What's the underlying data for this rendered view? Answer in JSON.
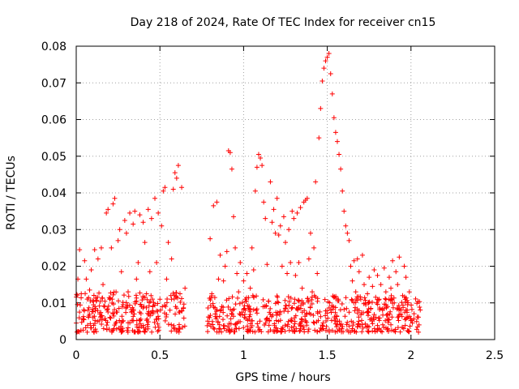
{
  "chart_data": {
    "type": "scatter",
    "title": "Day 218 of 2024, Rate Of TEC Index for receiver cn15",
    "xlabel": "GPS time / hours",
    "ylabel": "ROTI / TECUs",
    "xlim": [
      0,
      2.5
    ],
    "ylim": [
      0,
      0.08
    ],
    "xticks": [
      0,
      0.5,
      1,
      1.5,
      2,
      2.5
    ],
    "xtick_labels": [
      "0",
      "0.5",
      "1",
      "1.5",
      "2",
      "2.5"
    ],
    "yticks": [
      0,
      0.01,
      0.02,
      0.03,
      0.04,
      0.05,
      0.06,
      0.07,
      0.08
    ],
    "ytick_labels": [
      "0",
      "0.01",
      "0.02",
      "0.03",
      "0.04",
      "0.05",
      "0.06",
      "0.07",
      "0.08"
    ],
    "grid": true,
    "marker": "+",
    "color": "#ff0000",
    "series": [
      {
        "name": "ROTI",
        "points": [
          [
            0.0,
            0.0045
          ],
          [
            0.01,
            0.0165
          ],
          [
            0.02,
            0.0245
          ],
          [
            0.02,
            0.0075
          ],
          [
            0.03,
            0.0125
          ],
          [
            0.04,
            0.0055
          ],
          [
            0.05,
            0.0215
          ],
          [
            0.06,
            0.0165
          ],
          [
            0.07,
            0.008
          ],
          [
            0.08,
            0.0135
          ],
          [
            0.09,
            0.019
          ],
          [
            0.1,
            0.006
          ],
          [
            0.11,
            0.0245
          ],
          [
            0.12,
            0.0105
          ],
          [
            0.13,
            0.022
          ],
          [
            0.14,
            0.007
          ],
          [
            0.15,
            0.025
          ],
          [
            0.16,
            0.015
          ],
          [
            0.17,
            0.009
          ],
          [
            0.18,
            0.0345
          ],
          [
            0.19,
            0.0355
          ],
          [
            0.2,
            0.011
          ],
          [
            0.21,
            0.025
          ],
          [
            0.22,
            0.037
          ],
          [
            0.23,
            0.0385
          ],
          [
            0.24,
            0.0075
          ],
          [
            0.25,
            0.027
          ],
          [
            0.26,
            0.03
          ],
          [
            0.27,
            0.0185
          ],
          [
            0.28,
            0.0095
          ],
          [
            0.29,
            0.0325
          ],
          [
            0.3,
            0.029
          ],
          [
            0.31,
            0.013
          ],
          [
            0.32,
            0.0345
          ],
          [
            0.33,
            0.0075
          ],
          [
            0.34,
            0.0315
          ],
          [
            0.35,
            0.035
          ],
          [
            0.36,
            0.0165
          ],
          [
            0.37,
            0.021
          ],
          [
            0.38,
            0.034
          ],
          [
            0.39,
            0.009
          ],
          [
            0.4,
            0.032
          ],
          [
            0.41,
            0.0265
          ],
          [
            0.42,
            0.0125
          ],
          [
            0.43,
            0.0355
          ],
          [
            0.44,
            0.0185
          ],
          [
            0.45,
            0.033
          ],
          [
            0.46,
            0.0075
          ],
          [
            0.47,
            0.0385
          ],
          [
            0.48,
            0.021
          ],
          [
            0.49,
            0.0345
          ],
          [
            0.5,
            0.011
          ],
          [
            0.51,
            0.031
          ],
          [
            0.52,
            0.0405
          ],
          [
            0.53,
            0.0415
          ],
          [
            0.54,
            0.0165
          ],
          [
            0.55,
            0.0265
          ],
          [
            0.56,
            0.008
          ],
          [
            0.57,
            0.022
          ],
          [
            0.58,
            0.041
          ],
          [
            0.59,
            0.0455
          ],
          [
            0.6,
            0.044
          ],
          [
            0.61,
            0.0475
          ],
          [
            0.62,
            0.0125
          ],
          [
            0.63,
            0.0415
          ],
          [
            0.64,
            0.0085
          ],
          [
            0.65,
            0.014
          ],
          [
            0.8,
            0.0275
          ],
          [
            0.81,
            0.0125
          ],
          [
            0.82,
            0.0365
          ],
          [
            0.83,
            0.007
          ],
          [
            0.84,
            0.0375
          ],
          [
            0.85,
            0.0165
          ],
          [
            0.86,
            0.023
          ],
          [
            0.87,
            0.009
          ],
          [
            0.88,
            0.016
          ],
          [
            0.89,
            0.02
          ],
          [
            0.9,
            0.024
          ],
          [
            0.91,
            0.0515
          ],
          [
            0.92,
            0.051
          ],
          [
            0.93,
            0.0465
          ],
          [
            0.94,
            0.0335
          ],
          [
            0.95,
            0.025
          ],
          [
            0.96,
            0.018
          ],
          [
            0.97,
            0.013
          ],
          [
            0.98,
            0.021
          ],
          [
            0.99,
            0.0075
          ],
          [
            1.0,
            0.016
          ],
          [
            1.01,
            0.011
          ],
          [
            1.02,
            0.018
          ],
          [
            1.03,
            0.0085
          ],
          [
            1.04,
            0.014
          ],
          [
            1.05,
            0.025
          ],
          [
            1.06,
            0.019
          ],
          [
            1.07,
            0.0405
          ],
          [
            1.08,
            0.047
          ],
          [
            1.09,
            0.0505
          ],
          [
            1.1,
            0.0495
          ],
          [
            1.11,
            0.0475
          ],
          [
            1.12,
            0.0375
          ],
          [
            1.13,
            0.033
          ],
          [
            1.14,
            0.0205
          ],
          [
            1.15,
            0.0105
          ],
          [
            1.16,
            0.043
          ],
          [
            1.17,
            0.032
          ],
          [
            1.18,
            0.0355
          ],
          [
            1.19,
            0.029
          ],
          [
            1.2,
            0.0385
          ],
          [
            1.21,
            0.0285
          ],
          [
            1.22,
            0.031
          ],
          [
            1.23,
            0.02
          ],
          [
            1.24,
            0.0335
          ],
          [
            1.25,
            0.0265
          ],
          [
            1.26,
            0.018
          ],
          [
            1.27,
            0.03
          ],
          [
            1.28,
            0.021
          ],
          [
            1.29,
            0.035
          ],
          [
            1.3,
            0.033
          ],
          [
            1.31,
            0.0175
          ],
          [
            1.32,
            0.0345
          ],
          [
            1.33,
            0.021
          ],
          [
            1.34,
            0.036
          ],
          [
            1.35,
            0.014
          ],
          [
            1.36,
            0.0375
          ],
          [
            1.37,
            0.038
          ],
          [
            1.38,
            0.0385
          ],
          [
            1.39,
            0.022
          ],
          [
            1.4,
            0.029
          ],
          [
            1.41,
            0.013
          ],
          [
            1.42,
            0.025
          ],
          [
            1.43,
            0.043
          ],
          [
            1.44,
            0.018
          ],
          [
            1.45,
            0.055
          ],
          [
            1.46,
            0.063
          ],
          [
            1.47,
            0.0705
          ],
          [
            1.48,
            0.074
          ],
          [
            1.49,
            0.076
          ],
          [
            1.5,
            0.077
          ],
          [
            1.51,
            0.078
          ],
          [
            1.52,
            0.0725
          ],
          [
            1.53,
            0.067
          ],
          [
            1.54,
            0.0605
          ],
          [
            1.55,
            0.0565
          ],
          [
            1.56,
            0.054
          ],
          [
            1.57,
            0.0505
          ],
          [
            1.58,
            0.0465
          ],
          [
            1.59,
            0.0405
          ],
          [
            1.6,
            0.035
          ],
          [
            1.61,
            0.031
          ],
          [
            1.62,
            0.029
          ],
          [
            1.63,
            0.027
          ],
          [
            1.64,
            0.02
          ],
          [
            1.65,
            0.016
          ],
          [
            1.66,
            0.0215
          ],
          [
            1.67,
            0.013
          ],
          [
            1.68,
            0.022
          ],
          [
            1.69,
            0.0185
          ],
          [
            1.7,
            0.011
          ],
          [
            1.71,
            0.023
          ],
          [
            1.72,
            0.015
          ],
          [
            1.73,
            0.0095
          ],
          [
            1.74,
            0.0125
          ],
          [
            1.75,
            0.017
          ],
          [
            1.76,
            0.0085
          ],
          [
            1.77,
            0.0145
          ],
          [
            1.78,
            0.019
          ],
          [
            1.79,
            0.006
          ],
          [
            1.8,
            0.0175
          ],
          [
            1.81,
            0.011
          ],
          [
            1.82,
            0.015
          ],
          [
            1.83,
            0.008
          ],
          [
            1.84,
            0.0195
          ],
          [
            1.85,
            0.013
          ],
          [
            1.86,
            0.009
          ],
          [
            1.87,
            0.017
          ],
          [
            1.88,
            0.014
          ],
          [
            1.89,
            0.0215
          ],
          [
            1.9,
            0.01
          ],
          [
            1.91,
            0.0185
          ],
          [
            1.92,
            0.015
          ],
          [
            1.93,
            0.0225
          ],
          [
            1.94,
            0.008
          ],
          [
            1.95,
            0.012
          ],
          [
            1.96,
            0.02
          ],
          [
            1.97,
            0.017
          ],
          [
            1.98,
            0.0095
          ],
          [
            1.99,
            0.013
          ]
        ]
      }
    ],
    "density_band": {
      "note": "dense cluster of low values along the baseline",
      "segments": [
        {
          "x_from": 0.0,
          "x_to": 0.65,
          "y_from": 0.002,
          "y_to": 0.013
        },
        {
          "x_from": 0.78,
          "x_to": 2.06,
          "y_from": 0.002,
          "y_to": 0.012
        }
      ]
    }
  }
}
